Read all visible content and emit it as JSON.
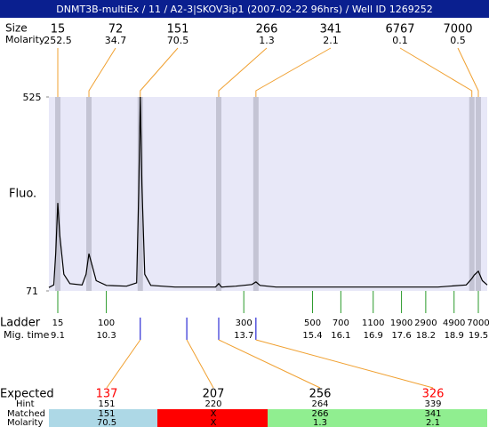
{
  "header": {
    "title": "DNMT3B-multiEx / 11 / A2-3|SKOV3ip1 (2007-02-22 96hrs) / Well ID 1269252"
  },
  "chart_data": {
    "type": "line",
    "y_label": "Fluo.",
    "x": [
      8.88,
      9.0,
      9.05,
      9.1,
      9.15,
      9.25,
      9.4,
      9.7,
      9.8,
      9.87,
      9.95,
      10.05,
      10.3,
      10.8,
      11.05,
      11.1,
      11.14,
      11.18,
      11.25,
      11.4,
      12.0,
      13.0,
      13.08,
      13.15,
      13.5,
      13.9,
      14.0,
      14.1,
      14.5,
      18.5,
      19.2,
      19.34,
      19.4,
      19.5,
      19.6,
      19.72
    ],
    "series": [
      {
        "color": "#000000",
        "values": [
          79,
          85,
          160,
          277,
          200,
          110,
          88,
          85,
          110,
          158,
          130,
          95,
          84,
          82,
          90,
          300,
          525,
          320,
          110,
          84,
          80,
          80,
          88,
          80,
          82,
          86,
          92,
          84,
          80,
          80,
          85,
          100,
          108,
          117,
          95,
          85
        ]
      }
    ],
    "xlim": [
      8.88,
      19.72
    ],
    "ylim": [
      71,
      525
    ],
    "yticks": [
      71,
      525
    ]
  },
  "peaks": {
    "size_label": "Size",
    "molarity_label": "Molarity",
    "items": [
      {
        "size": 15,
        "molarity": 252.5,
        "time": 9.1
      },
      {
        "size": 72,
        "molarity": 34.7,
        "time": 9.87
      },
      {
        "size": 151,
        "molarity": 70.5,
        "time": 11.14
      },
      {
        "size": 266,
        "molarity": 1.3,
        "time": 13.08
      },
      {
        "size": 341,
        "molarity": 2.1,
        "time": 14.0
      },
      {
        "size": 6767,
        "molarity": 0.1,
        "time": 19.34
      },
      {
        "size": 7000,
        "molarity": 0.5,
        "time": 19.5
      }
    ]
  },
  "ladder": {
    "label": "Ladder",
    "time_label": "Mig. time",
    "items": [
      {
        "size": 15,
        "time": 9.1
      },
      {
        "size": 100,
        "time": 10.3
      },
      {
        "size": 300,
        "time": 13.7
      },
      {
        "size": 500,
        "time": 15.4
      },
      {
        "size": 700,
        "time": 16.1
      },
      {
        "size": 1100,
        "time": 16.9
      },
      {
        "size": 1900,
        "time": 17.6
      },
      {
        "size": 2900,
        "time": 18.2
      },
      {
        "size": 4900,
        "time": 18.9
      },
      {
        "size": 7000,
        "time": 19.5
      }
    ]
  },
  "expected": {
    "label": "Expected",
    "hint_label": "Hint",
    "matched_label": "Matched",
    "molarity_label": "Molarity",
    "items": [
      {
        "size": 137,
        "color": "#ff0000",
        "time": 11.14,
        "hint": 151,
        "matched": 151,
        "molarity": 70.5,
        "cell_color": "#add8e6"
      },
      {
        "size": 207,
        "color": "#000000",
        "time": 12.29,
        "hint": 220,
        "matched": "X",
        "molarity": "X",
        "cell_color": "#ff0000"
      },
      {
        "size": 256,
        "color": "#000000",
        "time": 13.08,
        "hint": 264,
        "matched": 266,
        "molarity": 1.3,
        "cell_color": "#90ee90"
      },
      {
        "size": 326,
        "color": "#ff0000",
        "time": 14.0,
        "hint": 339,
        "matched": 341,
        "molarity": 2.1,
        "cell_color": "#90ee90"
      }
    ]
  }
}
